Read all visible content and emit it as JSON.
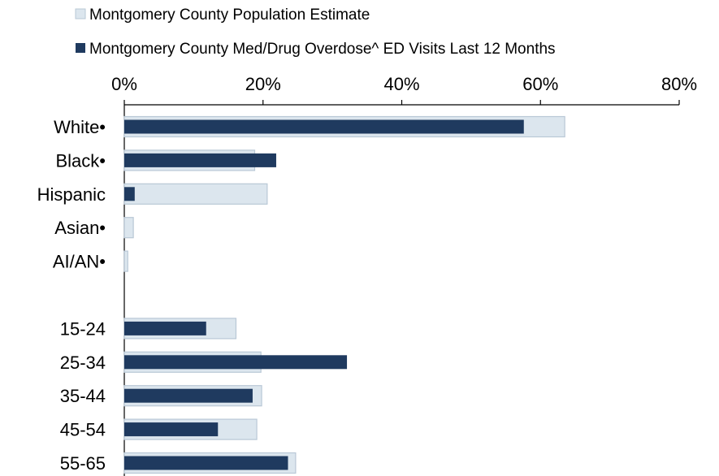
{
  "chart_data": {
    "type": "bar",
    "orientation": "horizontal",
    "axis_position": "top",
    "x_ticks": [
      "0%",
      "20%",
      "40%",
      "60%",
      "80%"
    ],
    "xlim": [
      0,
      80
    ],
    "grid": false,
    "legend_position": "top-left",
    "categories": [
      "White•",
      "Black•",
      "Hispanic",
      "Asian•",
      "AI/AN•",
      "",
      "15-24",
      "25-34",
      "35-44",
      "45-54",
      "55-65"
    ],
    "series": [
      {
        "name": "Montgomery County Population Estimate",
        "color": "#dce6ee",
        "values": [
          63.5,
          18.8,
          20.6,
          1.3,
          0.5,
          null,
          16.1,
          19.7,
          19.8,
          19.1,
          24.7
        ]
      },
      {
        "name": "Montgomery County Med/Drug Overdose^ ED Visits Last 12 Months",
        "color": "#1f3a5f",
        "values": [
          57.6,
          21.9,
          1.5,
          0,
          0,
          null,
          11.8,
          32.1,
          18.5,
          13.5,
          23.6
        ]
      }
    ]
  }
}
